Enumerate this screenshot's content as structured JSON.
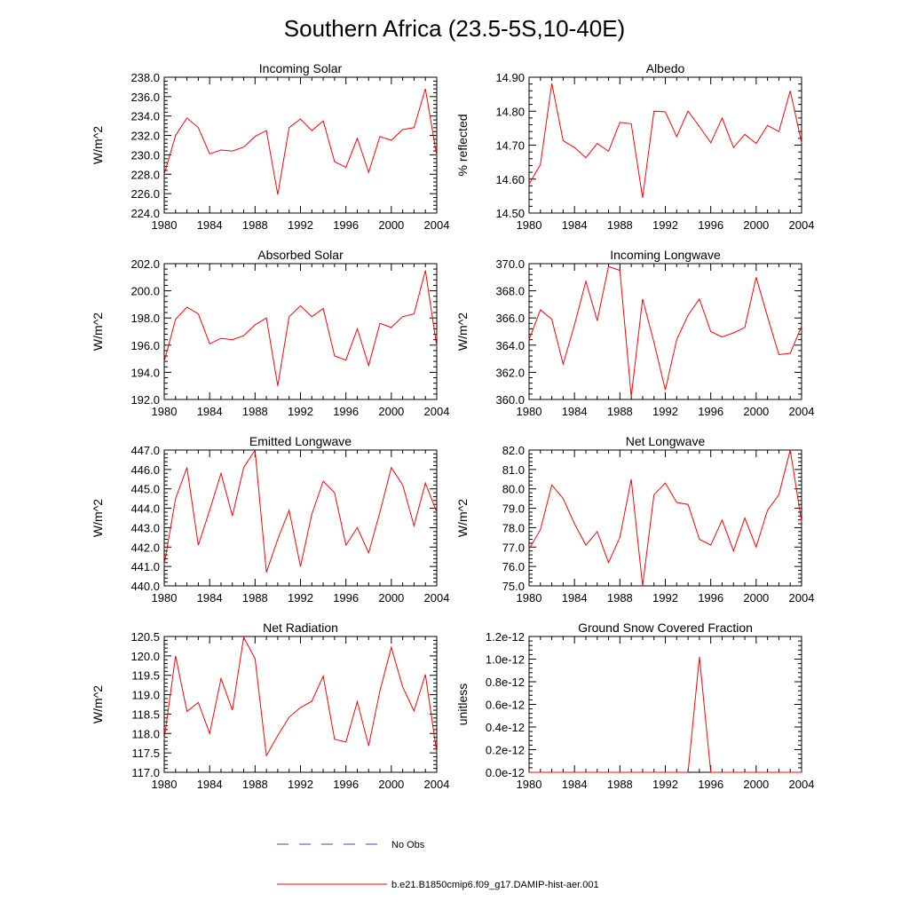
{
  "title": "Southern Africa (23.5-5S,10-40E)",
  "colors": {
    "model": "#ff0000",
    "obs": "#4040c0",
    "axis": "#000000"
  },
  "legend": {
    "obs_label": "No Obs",
    "model_label": "b.e21.B1850cmip6.f09_g17.DAMIP-hist-aer.001"
  },
  "chart_data": [
    {
      "type": "line",
      "title": "Incoming Solar",
      "ylabel": "W/m^2",
      "xlim": [
        1980,
        2004
      ],
      "ylim": [
        224,
        238
      ],
      "x_ticks": [
        "1980",
        "1984",
        "1988",
        "1992",
        "1996",
        "2000",
        "2004"
      ],
      "y_ticks": [
        "224.0",
        "226.0",
        "228.0",
        "230.0",
        "232.0",
        "234.0",
        "236.0",
        "238.0"
      ],
      "x": [
        1980,
        1981,
        1982,
        1983,
        1984,
        1985,
        1986,
        1987,
        1988,
        1989,
        1990,
        1991,
        1992,
        1993,
        1994,
        1995,
        1996,
        1997,
        1998,
        1999,
        2000,
        2001,
        2002,
        2003,
        2004
      ],
      "values": [
        228.0,
        232.0,
        233.8,
        232.8,
        230.1,
        230.5,
        230.4,
        230.8,
        231.9,
        232.5,
        225.9,
        232.8,
        233.7,
        232.5,
        233.5,
        229.3,
        228.7,
        231.7,
        228.2,
        231.9,
        231.5,
        232.6,
        232.8,
        236.8,
        229.9
      ]
    },
    {
      "type": "line",
      "title": "Albedo",
      "ylabel": "% reflected",
      "xlim": [
        1980,
        2004
      ],
      "ylim": [
        14.5,
        14.9
      ],
      "x_ticks": [
        "1980",
        "1984",
        "1988",
        "1992",
        "1996",
        "2000",
        "2004"
      ],
      "y_ticks": [
        "14.50",
        "14.60",
        "14.70",
        "14.80",
        "14.90"
      ],
      "x": [
        1980,
        1981,
        1982,
        1983,
        1984,
        1985,
        1986,
        1987,
        1988,
        1989,
        1990,
        1991,
        1992,
        1993,
        1994,
        1995,
        1996,
        1997,
        1998,
        1999,
        2000,
        2001,
        2002,
        2003,
        2004
      ],
      "values": [
        14.585,
        14.643,
        14.882,
        14.713,
        14.693,
        14.663,
        14.705,
        14.682,
        14.767,
        14.763,
        14.545,
        14.8,
        14.798,
        14.725,
        14.8,
        14.755,
        14.707,
        14.78,
        14.693,
        14.732,
        14.705,
        14.758,
        14.74,
        14.86,
        14.707
      ]
    },
    {
      "type": "line",
      "title": "Absorbed Solar",
      "ylabel": "W/m^2",
      "xlim": [
        1980,
        2004
      ],
      "ylim": [
        192,
        202
      ],
      "x_ticks": [
        "1980",
        "1984",
        "1988",
        "1992",
        "1996",
        "2000",
        "2004"
      ],
      "y_ticks": [
        "192.0",
        "194.0",
        "196.0",
        "198.0",
        "200.0",
        "202.0"
      ],
      "x": [
        1980,
        1981,
        1982,
        1983,
        1984,
        1985,
        1986,
        1987,
        1988,
        1989,
        1990,
        1991,
        1992,
        1993,
        1994,
        1995,
        1996,
        1997,
        1998,
        1999,
        2000,
        2001,
        2002,
        2003,
        2004
      ],
      "values": [
        194.8,
        197.9,
        198.8,
        198.3,
        196.1,
        196.5,
        196.4,
        196.7,
        197.5,
        198.0,
        193.0,
        198.1,
        198.9,
        198.1,
        198.7,
        195.2,
        194.9,
        197.2,
        194.5,
        197.6,
        197.3,
        198.1,
        198.3,
        201.5,
        195.9
      ]
    },
    {
      "type": "line",
      "title": "Incoming Longwave",
      "ylabel": "W/m^2",
      "xlim": [
        1980,
        2004
      ],
      "ylim": [
        360,
        370
      ],
      "x_ticks": [
        "1980",
        "1984",
        "1988",
        "1992",
        "1996",
        "2000",
        "2004"
      ],
      "y_ticks": [
        "360.0",
        "362.0",
        "364.0",
        "366.0",
        "368.0",
        "370.0"
      ],
      "x": [
        1980,
        1981,
        1982,
        1983,
        1984,
        1985,
        1986,
        1987,
        1988,
        1989,
        1990,
        1991,
        1992,
        1993,
        1994,
        1995,
        1996,
        1997,
        1998,
        1999,
        2000,
        2001,
        2002,
        2003,
        2004
      ],
      "values": [
        364.4,
        366.6,
        365.9,
        362.6,
        365.5,
        368.7,
        365.8,
        369.8,
        369.5,
        360.2,
        367.4,
        364.2,
        360.7,
        364.4,
        366.2,
        367.4,
        365.0,
        364.6,
        364.9,
        365.3,
        369.0,
        366.1,
        363.3,
        363.4,
        365.4
      ]
    },
    {
      "type": "line",
      "title": "Emitted Longwave",
      "ylabel": "W/m^2",
      "xlim": [
        1980,
        2004
      ],
      "ylim": [
        440,
        447
      ],
      "x_ticks": [
        "1980",
        "1984",
        "1988",
        "1992",
        "1996",
        "2000",
        "2004"
      ],
      "y_ticks": [
        "440.0",
        "441.0",
        "442.0",
        "443.0",
        "444.0",
        "445.0",
        "446.0",
        "447.0"
      ],
      "x": [
        1980,
        1981,
        1982,
        1983,
        1984,
        1985,
        1986,
        1987,
        1988,
        1989,
        1990,
        1991,
        1992,
        1993,
        1994,
        1995,
        1996,
        1997,
        1998,
        1999,
        2000,
        2001,
        2002,
        2003,
        2004
      ],
      "values": [
        441.1,
        444.5,
        446.1,
        442.1,
        443.9,
        445.8,
        443.6,
        446.1,
        447.0,
        440.7,
        442.4,
        443.9,
        441.0,
        443.7,
        445.4,
        444.8,
        442.1,
        443.0,
        441.7,
        443.8,
        446.1,
        445.2,
        443.1,
        445.3,
        443.8
      ]
    },
    {
      "type": "line",
      "title": "Net Longwave",
      "ylabel": "W/m^2",
      "xlim": [
        1980,
        2004
      ],
      "ylim": [
        75,
        82
      ],
      "x_ticks": [
        "1980",
        "1984",
        "1988",
        "1992",
        "1996",
        "2000",
        "2004"
      ],
      "y_ticks": [
        "75.0",
        "76.0",
        "77.0",
        "78.0",
        "79.0",
        "80.0",
        "81.0",
        "82.0"
      ],
      "x": [
        1980,
        1981,
        1982,
        1983,
        1984,
        1985,
        1986,
        1987,
        1988,
        1989,
        1990,
        1991,
        1992,
        1993,
        1994,
        1995,
        1996,
        1997,
        1998,
        1999,
        2000,
        2001,
        2002,
        2003,
        2004
      ],
      "values": [
        76.9,
        77.9,
        80.2,
        79.5,
        78.2,
        77.1,
        77.8,
        76.2,
        77.5,
        80.5,
        75.0,
        79.7,
        80.3,
        79.3,
        79.2,
        77.4,
        77.1,
        78.4,
        76.8,
        78.5,
        77.0,
        78.9,
        79.7,
        82.0,
        78.3
      ]
    },
    {
      "type": "line",
      "title": "Net Radiation",
      "ylabel": "W/m^2",
      "xlim": [
        1980,
        2004
      ],
      "ylim": [
        117,
        120.5
      ],
      "x_ticks": [
        "1980",
        "1984",
        "1988",
        "1992",
        "1996",
        "2000",
        "2004"
      ],
      "y_ticks": [
        "117.0",
        "117.5",
        "118.0",
        "118.5",
        "119.0",
        "119.5",
        "120.0",
        "120.5"
      ],
      "x": [
        1980,
        1981,
        1982,
        1983,
        1984,
        1985,
        1986,
        1987,
        1988,
        1989,
        1990,
        1991,
        1992,
        1993,
        1994,
        1995,
        1996,
        1997,
        1998,
        1999,
        2000,
        2001,
        2002,
        2003,
        2004
      ],
      "values": [
        117.85,
        120.0,
        118.57,
        118.8,
        118.0,
        119.42,
        118.6,
        120.48,
        119.93,
        117.43,
        117.95,
        118.42,
        118.67,
        118.83,
        119.48,
        117.85,
        117.78,
        118.82,
        117.68,
        119.1,
        120.22,
        119.2,
        118.58,
        119.52,
        117.5
      ]
    },
    {
      "type": "line",
      "title": "Ground Snow Covered Fraction",
      "ylabel": "unitless",
      "xlim": [
        1980,
        2004
      ],
      "ylim": [
        0,
        1.2e-12
      ],
      "x_ticks": [
        "1980",
        "1984",
        "1988",
        "1992",
        "1996",
        "2000",
        "2004"
      ],
      "y_ticks": [
        "0.0e-12",
        "0.2e-12",
        "0.4e-12",
        "0.6e-12",
        "0.8e-12",
        "1.0e-12",
        "1.2e-12"
      ],
      "x": [
        1980,
        1981,
        1982,
        1983,
        1984,
        1985,
        1986,
        1987,
        1988,
        1989,
        1990,
        1991,
        1992,
        1993,
        1994,
        1995,
        1996,
        1997,
        1998,
        1999,
        2000,
        2001,
        2002,
        2003,
        2004
      ],
      "values": [
        0,
        0,
        0,
        0,
        0,
        0,
        0,
        0,
        0,
        0,
        0,
        0,
        0,
        0,
        0,
        1.02e-12,
        0,
        0,
        0,
        0,
        0,
        0,
        0,
        0,
        0
      ]
    }
  ]
}
